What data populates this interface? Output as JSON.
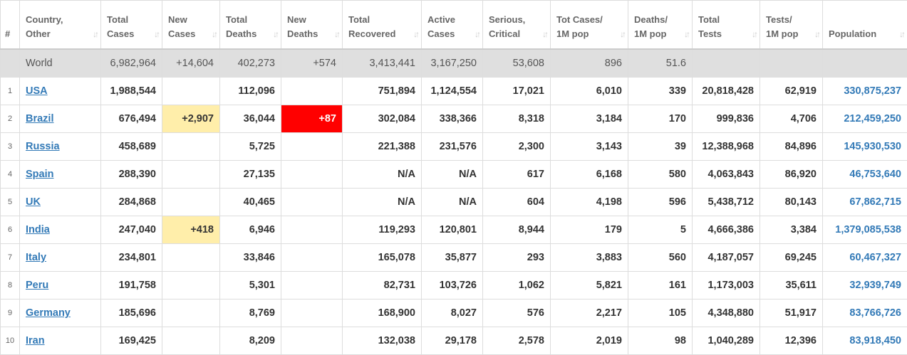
{
  "table": {
    "headers": [
      [
        "#"
      ],
      [
        "Country,",
        "Other"
      ],
      [
        "Total",
        "Cases"
      ],
      [
        "New",
        "Cases"
      ],
      [
        "Total",
        "Deaths"
      ],
      [
        "New",
        "Deaths"
      ],
      [
        "Total",
        "Recovered"
      ],
      [
        "Active",
        "Cases"
      ],
      [
        "Serious,",
        "Critical"
      ],
      [
        "Tot Cases/",
        "1M pop"
      ],
      [
        "Deaths/",
        "1M pop"
      ],
      [
        "Total",
        "Tests"
      ],
      [
        "Tests/",
        "1M pop"
      ],
      [
        "Population"
      ]
    ],
    "rows": [
      [
        null,
        "World",
        "6,982,964",
        "+14,604",
        "402,273",
        "+574",
        "3,413,441",
        "3,167,250",
        "53,608",
        "896",
        "51.6",
        null,
        null,
        null
      ],
      [
        "1",
        "USA",
        "1,988,544",
        null,
        "112,096",
        null,
        "751,894",
        "1,124,554",
        "17,021",
        "6,010",
        "339",
        "20,818,428",
        "62,919",
        "330,875,237"
      ],
      [
        "2",
        "Brazil",
        "676,494",
        "+2,907",
        "36,044",
        "+87",
        "302,084",
        "338,366",
        "8,318",
        "3,184",
        "170",
        "999,836",
        "4,706",
        "212,459,250"
      ],
      [
        "3",
        "Russia",
        "458,689",
        null,
        "5,725",
        null,
        "221,388",
        "231,576",
        "2,300",
        "3,143",
        "39",
        "12,388,968",
        "84,896",
        "145,930,530"
      ],
      [
        "4",
        "Spain",
        "288,390",
        null,
        "27,135",
        null,
        "N/A",
        "N/A",
        "617",
        "6,168",
        "580",
        "4,063,843",
        "86,920",
        "46,753,640"
      ],
      [
        "5",
        "UK",
        "284,868",
        null,
        "40,465",
        null,
        "N/A",
        "N/A",
        "604",
        "4,198",
        "596",
        "5,438,712",
        "80,143",
        "67,862,715"
      ],
      [
        "6",
        "India",
        "247,040",
        "+418",
        "6,946",
        null,
        "119,293",
        "120,801",
        "8,944",
        "179",
        "5",
        "4,666,386",
        "3,384",
        "1,379,085,538"
      ],
      [
        "7",
        "Italy",
        "234,801",
        null,
        "33,846",
        null,
        "165,078",
        "35,877",
        "293",
        "3,883",
        "560",
        "4,187,057",
        "69,245",
        "60,467,327"
      ],
      [
        "8",
        "Peru",
        "191,758",
        null,
        "5,301",
        null,
        "82,731",
        "103,726",
        "1,062",
        "5,821",
        "161",
        "1,173,003",
        "35,611",
        "32,939,749"
      ],
      [
        "9",
        "Germany",
        "185,696",
        null,
        "8,769",
        null,
        "168,900",
        "8,027",
        "576",
        "2,217",
        "105",
        "4,348,880",
        "51,917",
        "83,766,726"
      ],
      [
        "10",
        "Iran",
        "169,425",
        null,
        "8,209",
        null,
        "132,038",
        "29,178",
        "2,578",
        "2,019",
        "98",
        "1,040,289",
        "12,396",
        "83,918,450"
      ]
    ]
  }
}
